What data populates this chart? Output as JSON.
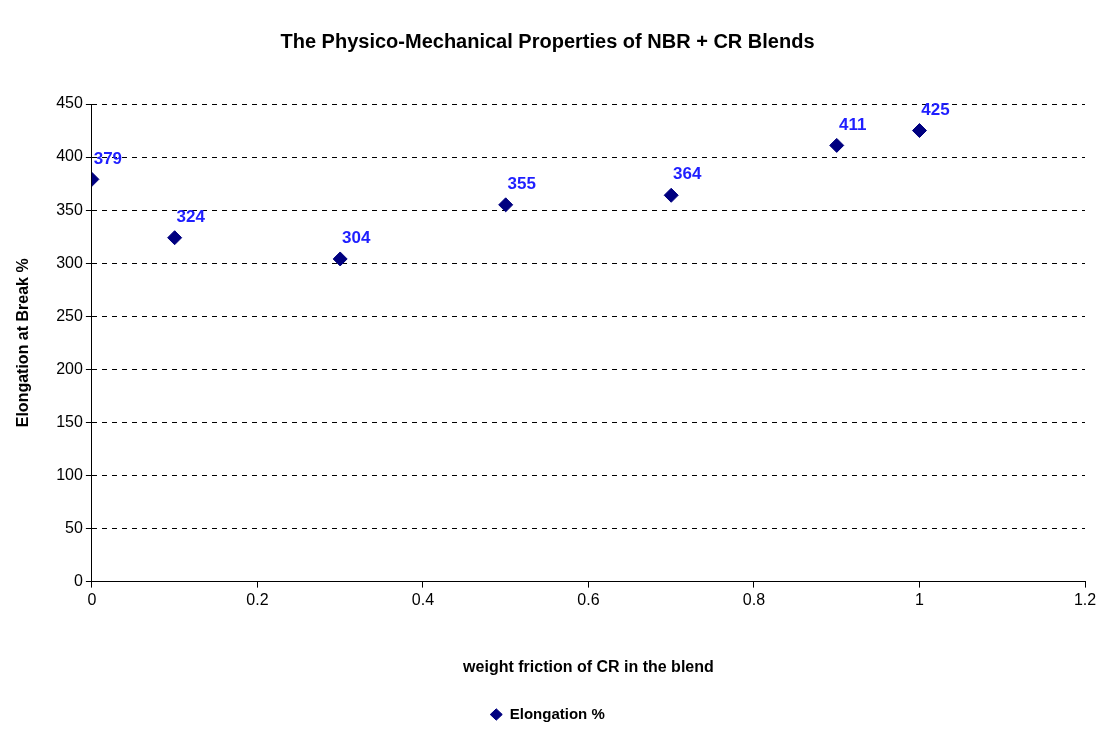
{
  "chart_data": {
    "type": "scatter",
    "title": "The Physico-Mechanical Properties of NBR + CR Blends",
    "xlabel": "weight friction of CR in the blend",
    "ylabel": "Elongation at Break %",
    "x": [
      0,
      0.1,
      0.3,
      0.5,
      0.7,
      0.9,
      1
    ],
    "series": [
      {
        "name": "Elongation %",
        "color": "#000080",
        "values": [
          379,
          324,
          304,
          355,
          364,
          411,
          425
        ]
      }
    ],
    "xlim": [
      0,
      1.2
    ],
    "xticks": [
      0,
      0.2,
      0.4,
      0.6,
      0.8,
      1,
      1.2
    ],
    "ylim": [
      0,
      450
    ],
    "yticks": [
      0,
      50,
      100,
      150,
      200,
      250,
      300,
      350,
      400,
      450
    ],
    "grid": "y",
    "legend": "bottom",
    "marker": "diamond",
    "data_labels": true
  }
}
